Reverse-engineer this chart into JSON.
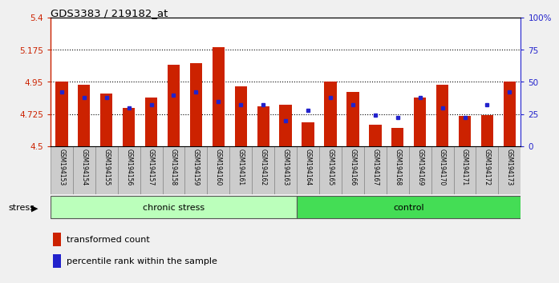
{
  "title": "GDS3383 / 219182_at",
  "samples": [
    "GSM194153",
    "GSM194154",
    "GSM194155",
    "GSM194156",
    "GSM194157",
    "GSM194158",
    "GSM194159",
    "GSM194160",
    "GSM194161",
    "GSM194162",
    "GSM194163",
    "GSM194164",
    "GSM194165",
    "GSM194166",
    "GSM194167",
    "GSM194168",
    "GSM194169",
    "GSM194170",
    "GSM194171",
    "GSM194172",
    "GSM194173"
  ],
  "transformed_count": [
    4.95,
    4.93,
    4.87,
    4.77,
    4.84,
    5.07,
    5.08,
    5.19,
    4.92,
    4.78,
    4.79,
    4.67,
    4.95,
    4.88,
    4.65,
    4.63,
    4.84,
    4.93,
    4.71,
    4.72,
    4.95
  ],
  "percentile_rank": [
    42,
    38,
    38,
    30,
    32,
    40,
    42,
    35,
    32,
    32,
    20,
    28,
    38,
    32,
    24,
    22,
    38,
    30,
    22,
    32,
    42
  ],
  "group_labels": [
    "chronic stress",
    "control"
  ],
  "chronic_stress_count": 11,
  "control_count": 10,
  "chronic_color": "#bbffbb",
  "control_color": "#44dd55",
  "ymin": 4.5,
  "ymax": 5.4,
  "yticks": [
    4.5,
    4.725,
    4.95,
    5.175,
    5.4
  ],
  "ytick_labels": [
    "4.5",
    "4.725",
    "4.95",
    "5.175",
    "5.4"
  ],
  "right_yticks": [
    0,
    25,
    50,
    75,
    100
  ],
  "right_ytick_labels": [
    "0",
    "25",
    "50",
    "75",
    "100%"
  ],
  "bar_color": "#cc2200",
  "marker_color": "#2222cc",
  "bg_color": "#f0f0f0",
  "plot_bg": "#ffffff",
  "stress_label": "stress",
  "left_axis_color": "#cc2200",
  "right_axis_color": "#2222cc",
  "label_bg": "#cccccc"
}
